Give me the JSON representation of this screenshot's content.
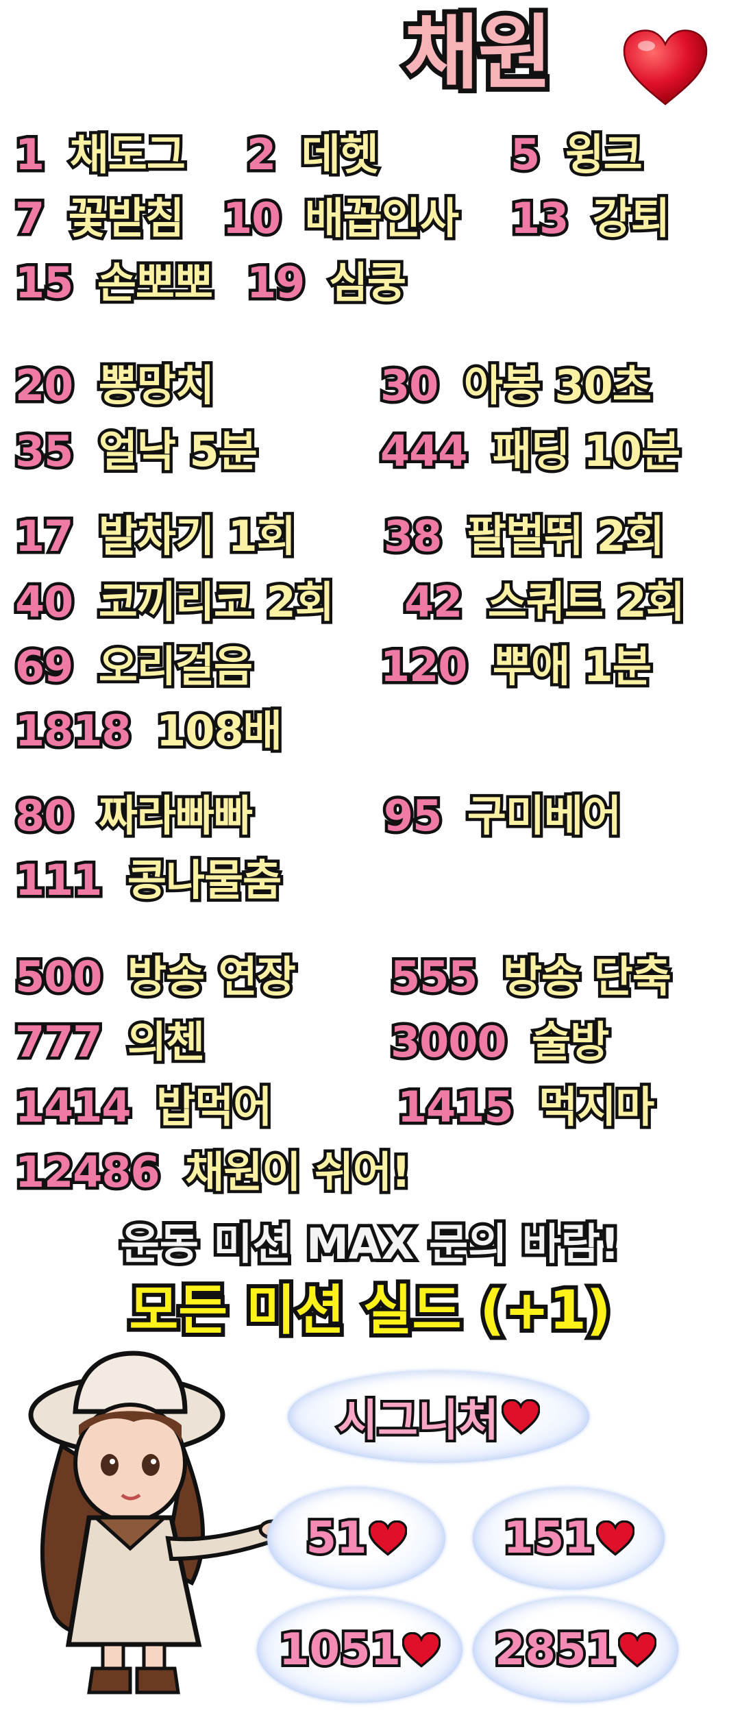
{
  "title": "채원",
  "groups": [
    [
      {
        "n": "1",
        "t": "채도그"
      },
      {
        "n": "2",
        "t": "데헷"
      },
      {
        "n": "5",
        "t": "윙크"
      },
      {
        "n": "7",
        "t": "꽃받침"
      },
      {
        "n": "10",
        "t": "배꼽인사"
      },
      {
        "n": "13",
        "t": "강퇴"
      },
      {
        "n": "15",
        "t": "손뽀뽀"
      },
      {
        "n": "19",
        "t": "심쿵"
      }
    ],
    [
      {
        "n": "20",
        "t": "뽕망치"
      },
      {
        "n": "30",
        "t": "아봉 30초"
      },
      {
        "n": "35",
        "t": "얼낙 5분"
      },
      {
        "n": "444",
        "t": "패딩 10분"
      }
    ],
    [
      {
        "n": "17",
        "t": "발차기 1회"
      },
      {
        "n": "38",
        "t": "팔벌뛰 2회"
      },
      {
        "n": "40",
        "t": "코끼리코 2회"
      },
      {
        "n": "42",
        "t": "스쿼트 2회"
      },
      {
        "n": "69",
        "t": "오리걸음"
      },
      {
        "n": "120",
        "t": "뿌애 1분"
      },
      {
        "n": "1818",
        "t": "108배"
      }
    ],
    [
      {
        "n": "80",
        "t": "짜라빠빠"
      },
      {
        "n": "95",
        "t": "구미베어"
      },
      {
        "n": "111",
        "t": "콩나물춤"
      }
    ],
    [
      {
        "n": "500",
        "t": "방송 연장"
      },
      {
        "n": "555",
        "t": "방송 단축"
      },
      {
        "n": "777",
        "t": "의첸"
      },
      {
        "n": "3000",
        "t": "술방"
      },
      {
        "n": "1414",
        "t": "밥먹어"
      },
      {
        "n": "1415",
        "t": "먹지마"
      },
      {
        "n": "12486",
        "t": "채원이 쉬어!"
      }
    ]
  ],
  "notice": "운동 미션 MAX 문의 바람!",
  "shield": "모든 미션 실드 (+1)",
  "signature": {
    "label": "시그니처",
    "items": [
      "51",
      "151",
      "1051",
      "2851"
    ]
  },
  "colors": {
    "number": "#f07aa6",
    "text": "#fbf1a4",
    "heart": "#e0102a",
    "shield": "#fff21a"
  }
}
